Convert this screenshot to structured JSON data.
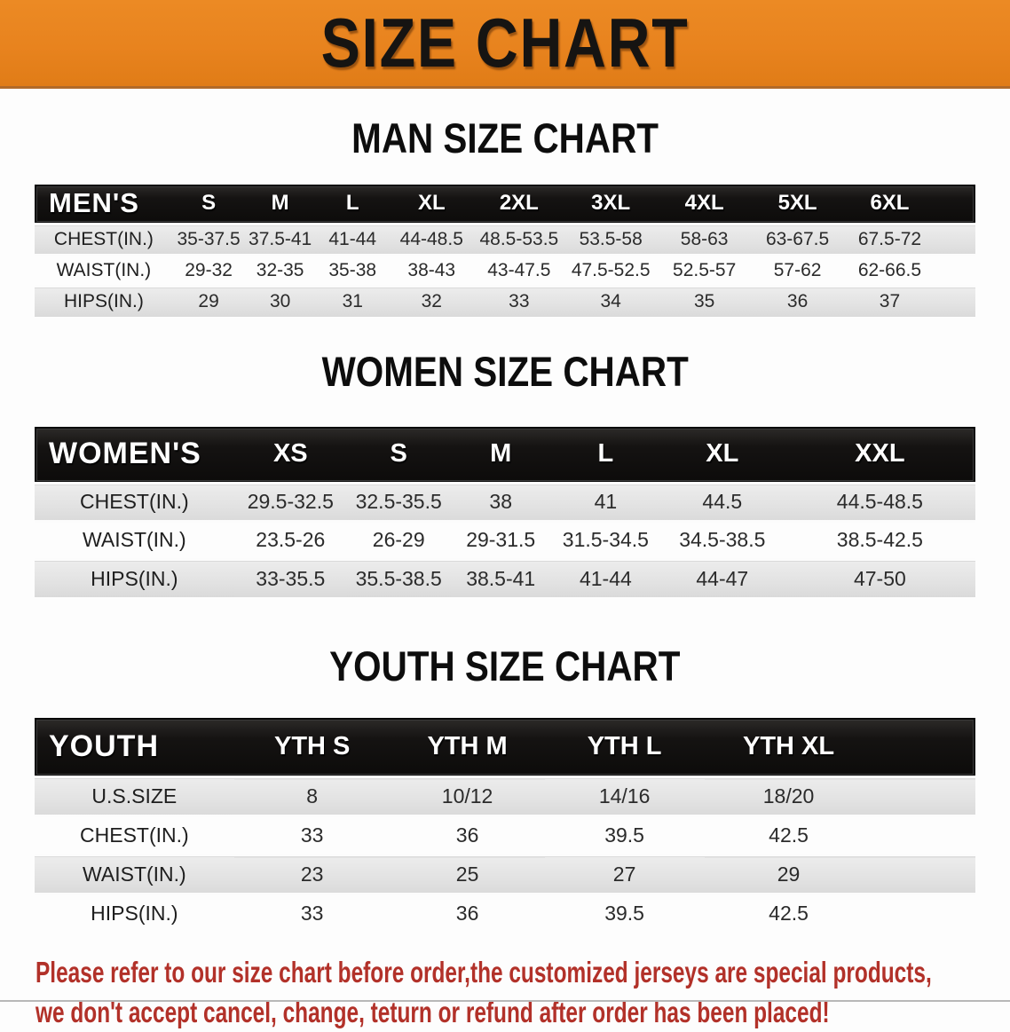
{
  "banner": {
    "title": "SIZE CHART"
  },
  "colors": {
    "banner_bg": "#E8831E",
    "banner_text": "#161412",
    "header_bar_bg": "#141210",
    "header_bar_text": "#FFFFFF",
    "row_gray": "#E3E3E3",
    "row_white": "#FDFDFD",
    "disclaimer_red": "#B23129"
  },
  "sections": [
    {
      "heading": "MAN SIZE CHART",
      "table": {
        "header_label": "MEN'S",
        "columns": [
          "S",
          "M",
          "L",
          "XL",
          "2XL",
          "3XL",
          "4XL",
          "5XL",
          "6XL"
        ],
        "rows": [
          {
            "label": "CHEST(IN.)",
            "values": [
              "35-37.5",
              "37.5-41",
              "41-44",
              "44-48.5",
              "48.5-53.5",
              "53.5-58",
              "58-63",
              "63-67.5",
              "67.5-72"
            ]
          },
          {
            "label": "WAIST(IN.)",
            "values": [
              "29-32",
              "32-35",
              "35-38",
              "38-43",
              "43-47.5",
              "47.5-52.5",
              "52.5-57",
              "57-62",
              "62-66.5"
            ]
          },
          {
            "label": "HIPS(IN.)",
            "values": [
              "29",
              "30",
              "31",
              "32",
              "33",
              "34",
              "35",
              "36",
              "37"
            ]
          }
        ]
      }
    },
    {
      "heading": "WOMEN SIZE CHART",
      "table": {
        "header_label": "WOMEN'S",
        "columns": [
          "XS",
          "S",
          "M",
          "L",
          "XL",
          "XXL"
        ],
        "rows": [
          {
            "label": "CHEST(IN.)",
            "values": [
              "29.5-32.5",
              "32.5-35.5",
              "38",
              "41",
              "44.5",
              "44.5-48.5"
            ]
          },
          {
            "label": "WAIST(IN.)",
            "values": [
              "23.5-26",
              "26-29",
              "29-31.5",
              "31.5-34.5",
              "34.5-38.5",
              "38.5-42.5"
            ]
          },
          {
            "label": "HIPS(IN.)",
            "values": [
              "33-35.5",
              "35.5-38.5",
              "38.5-41",
              "41-44",
              "44-47",
              "47-50"
            ]
          }
        ]
      }
    },
    {
      "heading": "YOUTH SIZE CHART",
      "table": {
        "header_label": "YOUTH",
        "columns": [
          "YTH S",
          "YTH M",
          "YTH L",
          "YTH XL"
        ],
        "rows": [
          {
            "label": "U.S.SIZE",
            "values": [
              "8",
              "10/12",
              "14/16",
              "18/20"
            ]
          },
          {
            "label": "CHEST(IN.)",
            "values": [
              "33",
              "36",
              "39.5",
              "42.5"
            ]
          },
          {
            "label": "WAIST(IN.)",
            "values": [
              "23",
              "25",
              "27",
              "29"
            ]
          },
          {
            "label": "HIPS(IN.)",
            "values": [
              "33",
              "36",
              "39.5",
              "42.5"
            ]
          }
        ]
      }
    }
  ],
  "disclaimer": {
    "line1": "Please refer to our size chart before order,the customized jerseys are special products,",
    "line2": "we don't accept cancel, change, teturn or refund after order has been placed!"
  }
}
